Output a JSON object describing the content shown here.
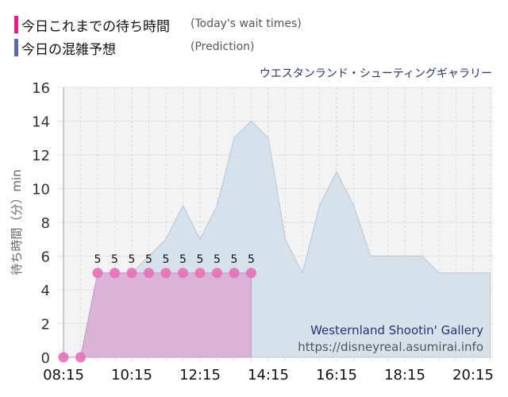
{
  "legend": {
    "actual": {
      "label_ja": "今日これまでの待ち時間",
      "label_en": "(Today's wait times)",
      "color": "#f0198c"
    },
    "prediction": {
      "label_ja": "今日の混雑予想",
      "label_en": "(Prediction)",
      "color": "#5c6aa8"
    }
  },
  "attraction_name": "ウエスタンランド・シューティングギャラリー",
  "watermark": {
    "name": "Westernland Shootin' Gallery",
    "url": "https://disneyreal.asumirai.info"
  },
  "chart_data": {
    "type": "area",
    "title": "ウエスタンランド・シューティングギャラリー",
    "xlabel": "",
    "ylabel": "待ち時間（分）min",
    "ylim": [
      0,
      16
    ],
    "yticks": [
      0,
      2,
      4,
      6,
      8,
      10,
      12,
      14,
      16
    ],
    "xtick_labels": [
      "08:15",
      "10:15",
      "12:15",
      "14:15",
      "16:15",
      "18:15",
      "20:15"
    ],
    "grid": true,
    "legend_position": "top-left",
    "x": [
      "08:15",
      "08:45",
      "09:15",
      "09:45",
      "10:15",
      "10:45",
      "11:15",
      "11:45",
      "12:15",
      "12:45",
      "13:15",
      "13:45",
      "14:15",
      "14:45",
      "15:15",
      "15:45",
      "16:15",
      "16:45",
      "17:15",
      "17:45",
      "18:15",
      "18:45",
      "19:15",
      "19:45",
      "20:15",
      "20:45"
    ],
    "series": [
      {
        "name": "今日の混雑予想 (Prediction)",
        "type": "area",
        "color": "#d5e1ea",
        "values": [
          0,
          0,
          5,
          5,
          5,
          6,
          7,
          9,
          7,
          9,
          13,
          14,
          13,
          7,
          5,
          9,
          11,
          9,
          6,
          6,
          6,
          6,
          5,
          5,
          5,
          5
        ]
      },
      {
        "name": "今日これまでの待ち時間 (Today's wait times)",
        "type": "area+markers",
        "color": "#e86fb8",
        "values": [
          0,
          0,
          5,
          5,
          5,
          5,
          5,
          5,
          5,
          5,
          5,
          5
        ],
        "data_labels": [
          null,
          null,
          "5",
          "5",
          "5",
          "5",
          "5",
          "5",
          "5",
          "5",
          "5",
          "5"
        ]
      }
    ]
  }
}
